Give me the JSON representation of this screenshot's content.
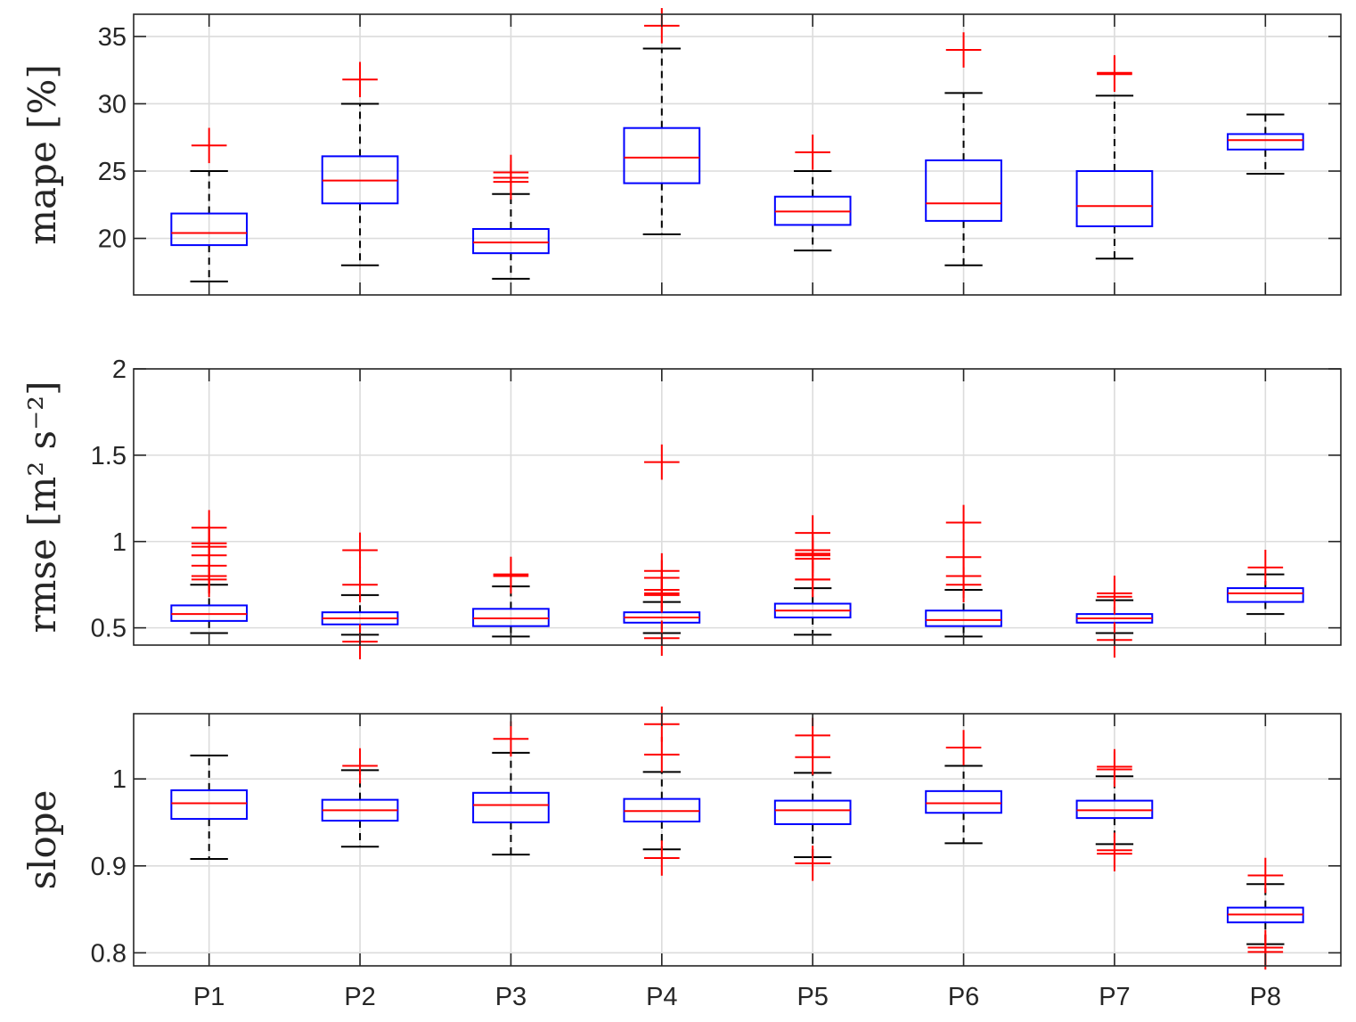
{
  "figure": {
    "colors": {
      "box": "#0000ff",
      "median": "#ff0000",
      "outlier": "#ff0000",
      "whisker": "#000000",
      "axis": "#262626",
      "grid": "#dcdcdc"
    }
  },
  "chart_data": [
    {
      "type": "box",
      "title": "",
      "xlabel": "",
      "ylabel": "mape [%]",
      "ylim": [
        15.8,
        36.65
      ],
      "yticks": [
        20,
        25,
        30,
        35
      ],
      "ytick_labels": [
        "20",
        "25",
        "30",
        "35"
      ],
      "grid": true,
      "show_xtick_labels": false,
      "categories": [
        "P1",
        "P2",
        "P3",
        "P4",
        "P5",
        "P6",
        "P7",
        "P8"
      ],
      "boxes": [
        {
          "lower_whisker": 16.8,
          "q1": 19.5,
          "median": 20.4,
          "q3": 21.85,
          "upper_whisker": 25.0,
          "outliers": [
            26.9
          ]
        },
        {
          "lower_whisker": 18.0,
          "q1": 22.6,
          "median": 24.3,
          "q3": 26.1,
          "upper_whisker": 30.0,
          "outliers": [
            31.8
          ]
        },
        {
          "lower_whisker": 17.0,
          "q1": 18.9,
          "median": 19.7,
          "q3": 20.7,
          "upper_whisker": 23.3,
          "outliers": [
            24.2,
            24.5,
            24.9
          ]
        },
        {
          "lower_whisker": 20.3,
          "q1": 24.1,
          "median": 26.0,
          "q3": 28.2,
          "upper_whisker": 34.1,
          "outliers": [
            35.8
          ]
        },
        {
          "lower_whisker": 19.1,
          "q1": 21.0,
          "median": 22.0,
          "q3": 23.1,
          "upper_whisker": 25.0,
          "outliers": [
            26.4
          ]
        },
        {
          "lower_whisker": 18.0,
          "q1": 21.3,
          "median": 22.6,
          "q3": 25.8,
          "upper_whisker": 30.8,
          "outliers": [
            34.0
          ]
        },
        {
          "lower_whisker": 18.5,
          "q1": 20.9,
          "median": 22.4,
          "q3": 25.0,
          "upper_whisker": 30.6,
          "outliers": [
            32.2,
            32.3
          ]
        },
        {
          "lower_whisker": 24.8,
          "q1": 26.6,
          "median": 27.3,
          "q3": 27.75,
          "upper_whisker": 29.2,
          "outliers": []
        }
      ]
    },
    {
      "type": "box",
      "title": "",
      "xlabel": "",
      "ylabel": "rmse [m² s⁻²]",
      "ylim": [
        0.4,
        2.0
      ],
      "yticks": [
        0.5,
        1.0,
        1.5,
        2.0
      ],
      "ytick_labels": [
        "0.5",
        "1",
        "1.5",
        "2"
      ],
      "grid": true,
      "show_xtick_labels": false,
      "categories": [
        "P1",
        "P2",
        "P3",
        "P4",
        "P5",
        "P6",
        "P7",
        "P8"
      ],
      "boxes": [
        {
          "lower_whisker": 0.47,
          "q1": 0.54,
          "median": 0.58,
          "q3": 0.63,
          "upper_whisker": 0.75,
          "outliers": [
            0.78,
            0.8,
            0.86,
            0.92,
            0.97,
            0.99,
            1.08
          ]
        },
        {
          "lower_whisker": 0.46,
          "q1": 0.52,
          "median": 0.555,
          "q3": 0.59,
          "upper_whisker": 0.69,
          "outliers": [
            0.42,
            0.75,
            0.95
          ]
        },
        {
          "lower_whisker": 0.45,
          "q1": 0.51,
          "median": 0.555,
          "q3": 0.61,
          "upper_whisker": 0.74,
          "outliers": [
            0.8,
            0.81
          ]
        },
        {
          "lower_whisker": 0.47,
          "q1": 0.53,
          "median": 0.56,
          "q3": 0.59,
          "upper_whisker": 0.65,
          "outliers": [
            0.44,
            0.69,
            0.7,
            0.72,
            0.79,
            0.83,
            1.46
          ]
        },
        {
          "lower_whisker": 0.46,
          "q1": 0.56,
          "median": 0.6,
          "q3": 0.64,
          "upper_whisker": 0.73,
          "outliers": [
            0.78,
            0.78,
            0.9,
            0.92,
            0.93,
            0.95,
            1.05
          ]
        },
        {
          "lower_whisker": 0.45,
          "q1": 0.51,
          "median": 0.545,
          "q3": 0.6,
          "upper_whisker": 0.72,
          "outliers": [
            0.75,
            0.8,
            0.91,
            1.11
          ]
        },
        {
          "lower_whisker": 0.47,
          "q1": 0.53,
          "median": 0.555,
          "q3": 0.58,
          "upper_whisker": 0.66,
          "outliers": [
            0.43,
            0.68,
            0.7
          ]
        },
        {
          "lower_whisker": 0.58,
          "q1": 0.65,
          "median": 0.7,
          "q3": 0.73,
          "upper_whisker": 0.81,
          "outliers": [
            0.85
          ]
        }
      ]
    },
    {
      "type": "box",
      "title": "",
      "xlabel": "",
      "ylabel": "slope",
      "ylim": [
        0.785,
        1.075
      ],
      "yticks": [
        0.8,
        0.9,
        1.0
      ],
      "ytick_labels": [
        "0.8",
        "0.9",
        "1"
      ],
      "grid": true,
      "show_xtick_labels": true,
      "categories": [
        "P1",
        "P2",
        "P3",
        "P4",
        "P5",
        "P6",
        "P7",
        "P8"
      ],
      "boxes": [
        {
          "lower_whisker": 0.908,
          "q1": 0.954,
          "median": 0.972,
          "q3": 0.987,
          "upper_whisker": 1.027,
          "outliers": []
        },
        {
          "lower_whisker": 0.922,
          "q1": 0.952,
          "median": 0.964,
          "q3": 0.976,
          "upper_whisker": 1.01,
          "outliers": [
            1.015
          ]
        },
        {
          "lower_whisker": 0.913,
          "q1": 0.95,
          "median": 0.97,
          "q3": 0.984,
          "upper_whisker": 1.03,
          "outliers": [
            1.046
          ]
        },
        {
          "lower_whisker": 0.919,
          "q1": 0.951,
          "median": 0.963,
          "q3": 0.977,
          "upper_whisker": 1.008,
          "outliers": [
            0.909,
            1.028,
            1.063
          ]
        },
        {
          "lower_whisker": 0.91,
          "q1": 0.948,
          "median": 0.964,
          "q3": 0.975,
          "upper_whisker": 1.007,
          "outliers": [
            0.903,
            1.025,
            1.05
          ]
        },
        {
          "lower_whisker": 0.926,
          "q1": 0.961,
          "median": 0.972,
          "q3": 0.986,
          "upper_whisker": 1.015,
          "outliers": [
            1.036
          ]
        },
        {
          "lower_whisker": 0.925,
          "q1": 0.955,
          "median": 0.964,
          "q3": 0.975,
          "upper_whisker": 1.003,
          "outliers": [
            0.914,
            0.918,
            1.011,
            1.014
          ]
        },
        {
          "lower_whisker": 0.81,
          "q1": 0.835,
          "median": 0.844,
          "q3": 0.852,
          "upper_whisker": 0.879,
          "outliers": [
            0.801,
            0.806,
            0.889
          ]
        }
      ]
    }
  ]
}
